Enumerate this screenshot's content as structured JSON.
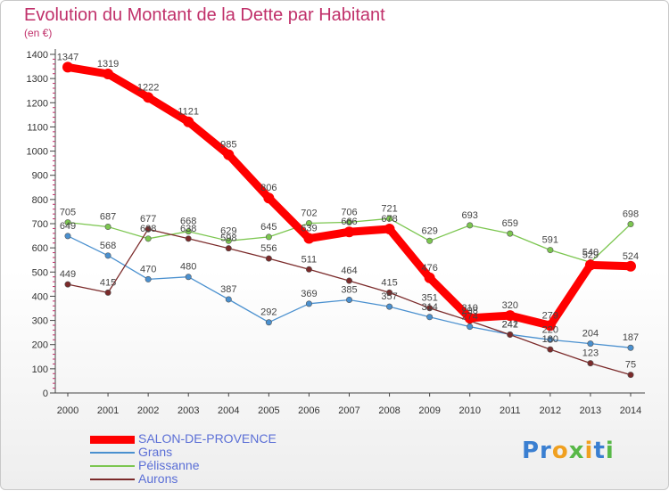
{
  "title": "Evolution du Montant de la Dette par Habitant",
  "subtitle": "(en €)",
  "brand": "Proxiti",
  "chart_data": {
    "type": "line",
    "x": [
      2000,
      2001,
      2002,
      2003,
      2004,
      2005,
      2006,
      2007,
      2008,
      2009,
      2010,
      2011,
      2012,
      2013,
      2014
    ],
    "y_ticks": [
      0,
      100,
      200,
      300,
      400,
      500,
      600,
      700,
      800,
      900,
      1000,
      1100,
      1200,
      1300,
      1400
    ],
    "ylim": [
      0,
      1400
    ],
    "xlim": [
      2000,
      2014
    ],
    "grid": false,
    "legend_position": "bottom-left",
    "series": [
      {
        "name": "SALON-DE-PROVENCE",
        "color": "#ff0000",
        "values": [
          1347,
          1319,
          1222,
          1121,
          985,
          806,
          639,
          666,
          678,
          476,
          310,
          320,
          279,
          529,
          524
        ],
        "labels": [
          "1347",
          "1319",
          "1222",
          "1121",
          "985",
          "806",
          "639",
          "666",
          "678",
          "476",
          "310",
          "320",
          "279",
          "529",
          "524"
        ]
      },
      {
        "name": "Grans",
        "color": "#4a90cf",
        "values": [
          649,
          568,
          470,
          480,
          387,
          292,
          369,
          385,
          357,
          314,
          274,
          242,
          220,
          204,
          187
        ],
        "labels": [
          "649",
          "568",
          "470",
          "480",
          "387",
          "292",
          "369",
          "385",
          "357",
          "314",
          "274",
          "242",
          "220",
          "204",
          "187"
        ]
      },
      {
        "name": "Pélissanne",
        "color": "#7cc650",
        "values": [
          705,
          687,
          638,
          668,
          629,
          645,
          702,
          706,
          721,
          629,
          693,
          659,
          591,
          540,
          698
        ],
        "labels": [
          "705",
          "687",
          "638",
          "668",
          "629",
          "645",
          "702",
          "706",
          "721",
          "629",
          "693",
          "659",
          "591",
          "540",
          "698"
        ]
      },
      {
        "name": "Aurons",
        "color": "#7b2a2a",
        "values": [
          449,
          415,
          677,
          638,
          598,
          556,
          511,
          464,
          415,
          351,
          298,
          241,
          180,
          123,
          75
        ],
        "labels": [
          "449",
          "415",
          "677",
          "638",
          "598",
          "556",
          "511",
          "464",
          "415",
          "351",
          "298",
          "241",
          "180",
          "123",
          "75"
        ]
      }
    ]
  }
}
